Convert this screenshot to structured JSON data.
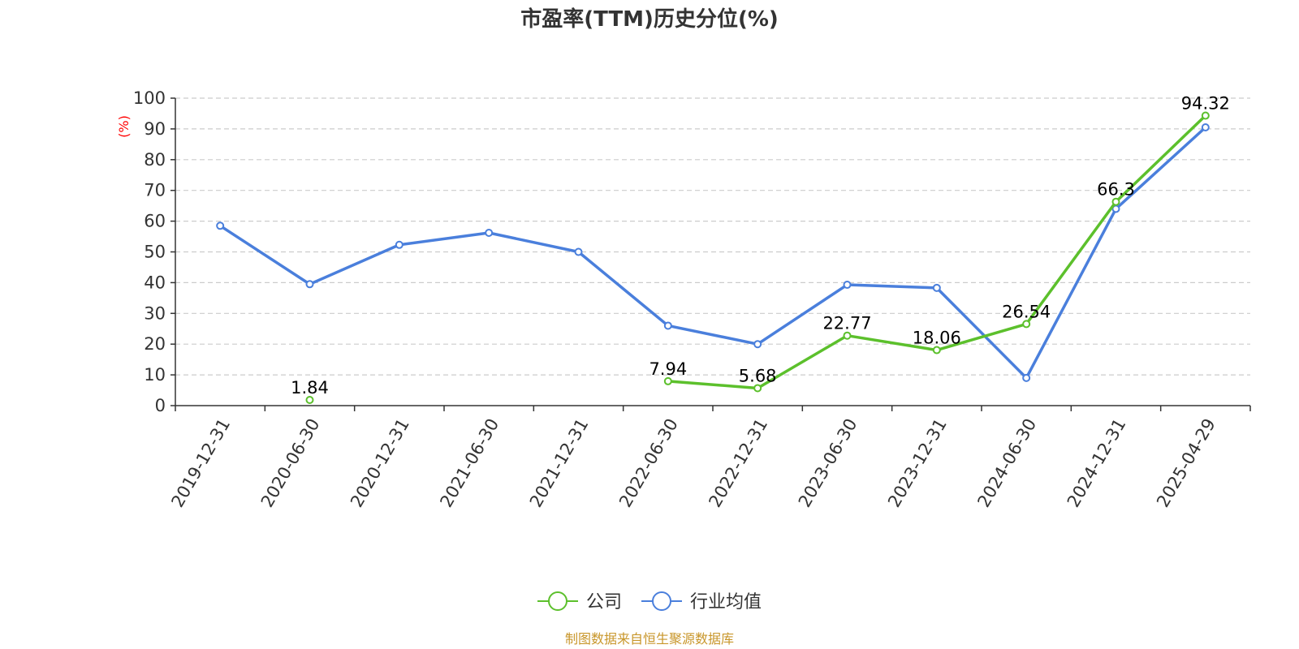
{
  "chart_data": {
    "type": "line",
    "title": "市盈率(TTM)历史分位(%)",
    "ylabel": "(%)",
    "xlabel": "",
    "ylim": [
      0,
      100
    ],
    "yticks": [
      0,
      10,
      20,
      30,
      40,
      50,
      60,
      70,
      80,
      90,
      100
    ],
    "grid": "horizontal dashed",
    "legend_position": "bottom-center",
    "categories": [
      "2019-12-31",
      "2020-06-30",
      "2020-12-31",
      "2021-06-30",
      "2021-12-31",
      "2022-06-30",
      "2022-12-31",
      "2023-06-30",
      "2023-12-31",
      "2024-06-30",
      "2024-12-31",
      "2025-04-29"
    ],
    "series": [
      {
        "name": "公司",
        "color": "#5cc02c",
        "values": [
          null,
          1.84,
          null,
          null,
          null,
          7.94,
          5.68,
          22.77,
          18.06,
          26.54,
          66.3,
          94.32
        ],
        "labels": [
          "",
          "1.84",
          "",
          "",
          "",
          "7.94",
          "5.68",
          "22.77",
          "18.06",
          "26.54",
          "66.3",
          "94.32"
        ]
      },
      {
        "name": "行业均值",
        "color": "#4a7fdc",
        "values": [
          58.5,
          39.5,
          52.3,
          56.2,
          50,
          26,
          20,
          39.3,
          38.3,
          9,
          64,
          90.5
        ]
      }
    ]
  },
  "source": "制图数据来自恒生聚源数据库"
}
